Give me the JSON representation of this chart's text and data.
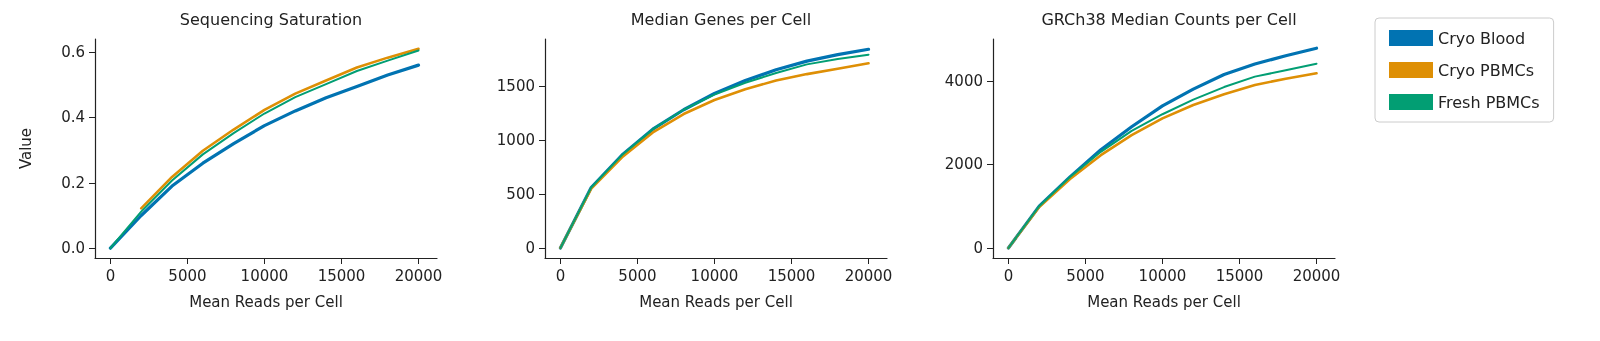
{
  "chart_data": [
    {
      "type": "line",
      "title": "Sequencing Saturation",
      "xlabel": "Mean Reads per Cell",
      "ylabel": "Value",
      "x": [
        0,
        2000,
        4000,
        6000,
        8000,
        10000,
        12000,
        14000,
        16000,
        18000,
        20000
      ],
      "xlim": [
        -1000,
        21200
      ],
      "xticks": [
        0,
        5000,
        10000,
        15000,
        20000
      ],
      "ylim": [
        -0.03,
        0.64
      ],
      "yticks": [
        {
          "value": 0,
          "label": "0.0"
        },
        {
          "value": 0.2,
          "label": "0.2"
        },
        {
          "value": 0.4,
          "label": "0.4"
        },
        {
          "value": 0.6,
          "label": "0.6"
        }
      ],
      "grid": false,
      "legend": false,
      "series": [
        {
          "color": "#0173b2",
          "values": [
            0,
            0.1,
            0.19,
            0.26,
            0.32,
            0.375,
            0.42,
            0.46,
            0.495,
            0.53,
            0.56
          ]
        },
        {
          "color": "#de8f05",
          "values": [
            null,
            0.122,
            0.218,
            0.298,
            0.363,
            0.423,
            0.473,
            0.513,
            0.553,
            0.583,
            0.61
          ]
        },
        {
          "color": "#029e73",
          "values": [
            0,
            0.112,
            0.207,
            0.287,
            0.352,
            0.412,
            0.462,
            0.502,
            0.542,
            0.574,
            0.605
          ]
        }
      ]
    },
    {
      "type": "line",
      "title": "Median Genes per Cell",
      "xlabel": "Mean Reads per Cell",
      "x": [
        0,
        2000,
        4000,
        6000,
        8000,
        10000,
        12000,
        14000,
        16000,
        18000,
        20000
      ],
      "xlim": [
        -1000,
        21200
      ],
      "xticks": [
        0,
        5000,
        10000,
        15000,
        20000
      ],
      "ylim": [
        -93,
        1935
      ],
      "yticks": [
        0,
        500,
        1000,
        1500
      ],
      "grid": false,
      "legend": false,
      "series": [
        {
          "color": "#0173b2",
          "values": [
            0,
            560,
            860,
            1100,
            1280,
            1430,
            1550,
            1650,
            1730,
            1790,
            1840
          ]
        },
        {
          "color": "#de8f05",
          "values": [
            0,
            550,
            840,
            1070,
            1240,
            1370,
            1470,
            1550,
            1610,
            1660,
            1710
          ]
        },
        {
          "color": "#029e73",
          "values": [
            0,
            560,
            860,
            1100,
            1280,
            1420,
            1530,
            1620,
            1700,
            1750,
            1790
          ]
        }
      ]
    },
    {
      "type": "line",
      "title": "GRCh38 Median Counts per Cell",
      "xlabel": "Mean Reads per Cell",
      "x": [
        0,
        2000,
        4000,
        6000,
        8000,
        10000,
        12000,
        14000,
        16000,
        18000,
        20000
      ],
      "xlim": [
        -1000,
        21200
      ],
      "xticks": [
        0,
        5000,
        10000,
        15000,
        20000
      ],
      "ylim": [
        -240,
        5000
      ],
      "yticks": [
        0,
        2000,
        4000
      ],
      "grid": false,
      "legend": "right",
      "series": [
        {
          "name": "Cryo Blood",
          "color": "#0173b2",
          "values": [
            0,
            1000,
            1700,
            2350,
            2900,
            3400,
            3800,
            4150,
            4400,
            4600,
            4780
          ]
        },
        {
          "name": "Cryo PBMCs",
          "color": "#de8f05",
          "values": [
            0,
            980,
            1650,
            2220,
            2700,
            3100,
            3420,
            3680,
            3900,
            4050,
            4180
          ]
        },
        {
          "name": "Fresh PBMCs",
          "color": "#029e73",
          "values": [
            0,
            1000,
            1700,
            2300,
            2800,
            3200,
            3550,
            3850,
            4100,
            4250,
            4410
          ]
        }
      ]
    }
  ]
}
